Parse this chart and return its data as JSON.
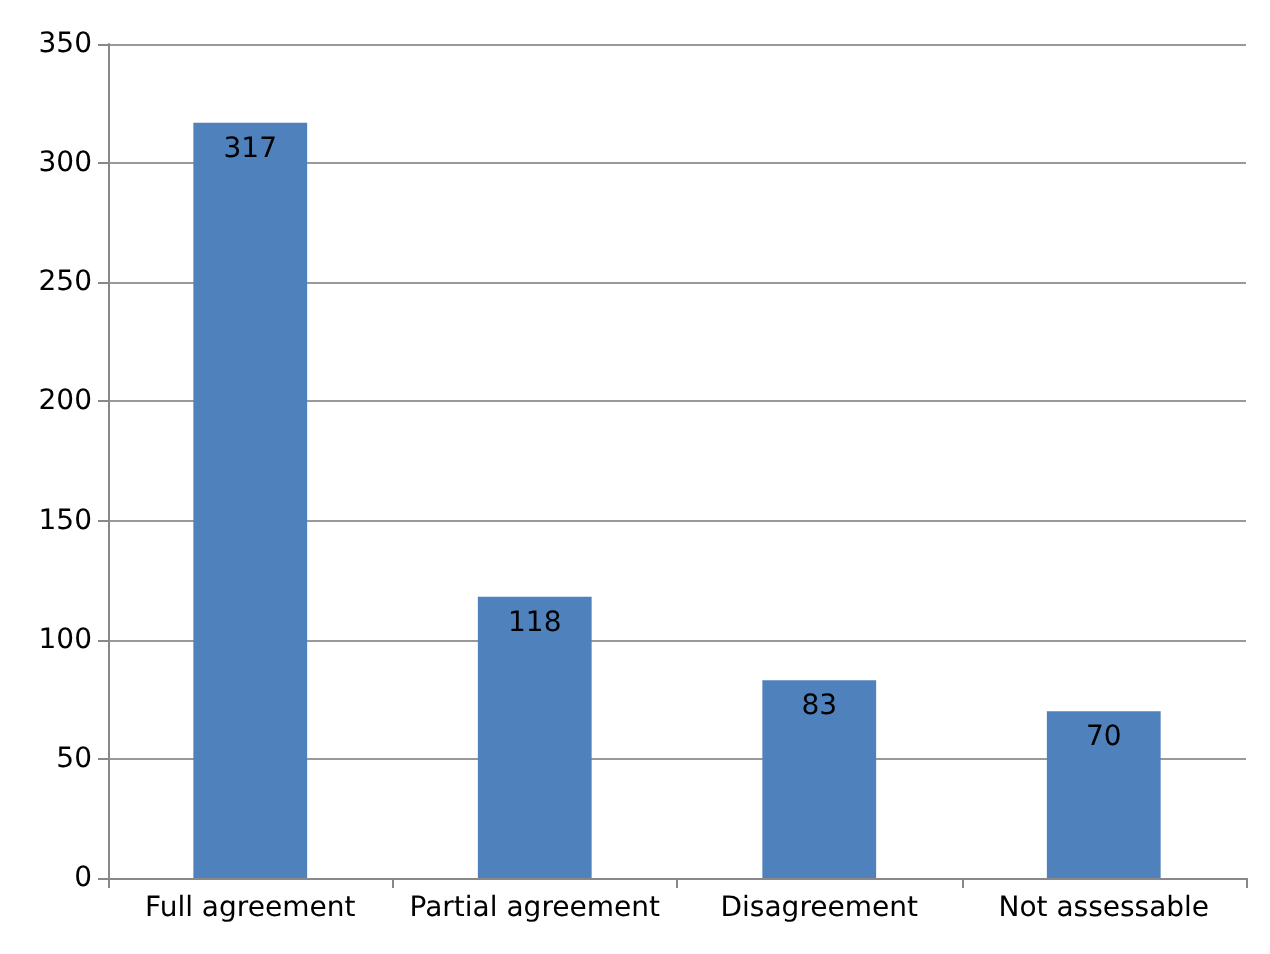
{
  "chart_data": {
    "type": "bar",
    "categories": [
      "Full agreement",
      "Partial agreement",
      "Disagreement",
      "Not assessable"
    ],
    "values": [
      317,
      118,
      83,
      70
    ],
    "color": "#4f81bd",
    "ylim": [
      0,
      350
    ],
    "yticks": [
      0,
      50,
      100,
      150,
      200,
      250,
      300,
      350
    ],
    "grid": "y",
    "data_labels": true
  }
}
